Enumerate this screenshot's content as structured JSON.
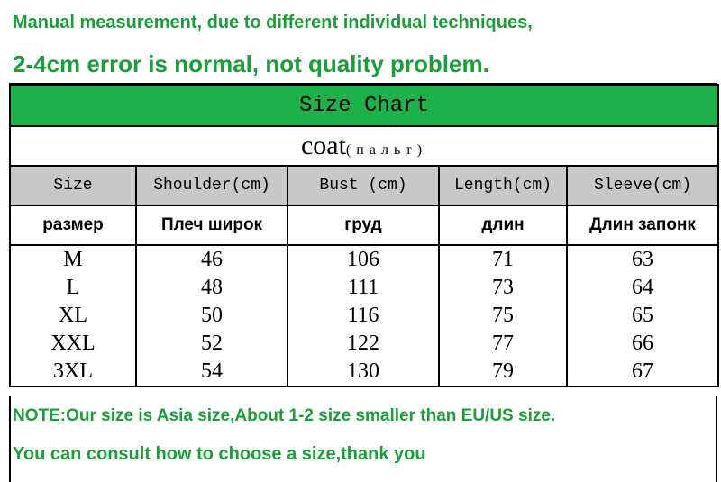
{
  "notice": {
    "line1": "Manual measurement, due to different individual techniques,",
    "line2": "2-4cm error is normal, not quality problem."
  },
  "table": {
    "title": "Size Chart",
    "item": "coat",
    "item_ru": "(пальт)",
    "headers": [
      "Size",
      "Shoulder(cm)",
      "Bust (cm)",
      "Length(cm)",
      "Sleeve(cm)"
    ],
    "headers_ru": [
      "размер",
      "Плеч широк",
      "груд",
      "длин",
      "Длин запонк"
    ],
    "rows": [
      [
        "M",
        46,
        106,
        71,
        63
      ],
      [
        "L",
        48,
        111,
        73,
        64
      ],
      [
        "XL",
        50,
        116,
        75,
        65
      ],
      [
        "XXL",
        52,
        122,
        77,
        66
      ],
      [
        "3XL",
        54,
        130,
        79,
        67
      ]
    ]
  },
  "footer": {
    "note": "NOTE:Our size is Asia size,About 1-2 size smaller than EU/US size.",
    "consult": "You can consult how to choose a size,thank you"
  }
}
